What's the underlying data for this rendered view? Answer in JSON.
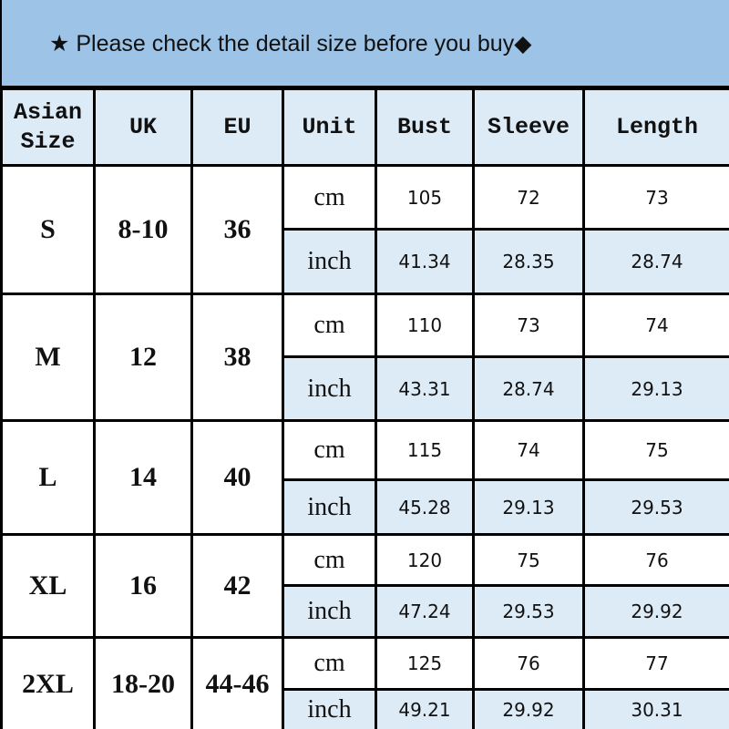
{
  "banner": {
    "text": "★ Please check the detail size before you buy◆"
  },
  "colors": {
    "banner": "#9dc3e6",
    "header_bg": "#ddebf7",
    "inch_row_bg": "#ddebf7",
    "border": "#000000"
  },
  "headers": [
    "Asian Size",
    "UK",
    "EU",
    "Unit",
    "Bust",
    "Sleeve",
    "Length"
  ],
  "rows": [
    {
      "asian": "S",
      "uk": "8-10",
      "eu": "36",
      "cm": {
        "unit": "cm",
        "bust": "105",
        "sleeve": "72",
        "length": "73"
      },
      "inch": {
        "unit": "inch",
        "bust": "41.34",
        "sleeve": "28.35",
        "length": "28.74"
      }
    },
    {
      "asian": "M",
      "uk": "12",
      "eu": "38",
      "cm": {
        "unit": "cm",
        "bust": "110",
        "sleeve": "73",
        "length": "74"
      },
      "inch": {
        "unit": "inch",
        "bust": "43.31",
        "sleeve": "28.74",
        "length": "29.13"
      }
    },
    {
      "asian": "L",
      "uk": "14",
      "eu": "40",
      "cm": {
        "unit": "cm",
        "bust": "115",
        "sleeve": "74",
        "length": "75"
      },
      "inch": {
        "unit": "inch",
        "bust": "45.28",
        "sleeve": "29.13",
        "length": "29.53"
      }
    },
    {
      "asian": "XL",
      "uk": "16",
      "eu": "42",
      "cm": {
        "unit": "cm",
        "bust": "120",
        "sleeve": "75",
        "length": "76"
      },
      "inch": {
        "unit": "inch",
        "bust": "47.24",
        "sleeve": "29.53",
        "length": "29.92"
      }
    },
    {
      "asian": "2XL",
      "uk": "18-20",
      "eu": "44-46",
      "cm": {
        "unit": "cm",
        "bust": "125",
        "sleeve": "76",
        "length": "77"
      },
      "inch": {
        "unit": "inch",
        "bust": "49.21",
        "sleeve": "29.92",
        "length": "30.31"
      }
    }
  ]
}
